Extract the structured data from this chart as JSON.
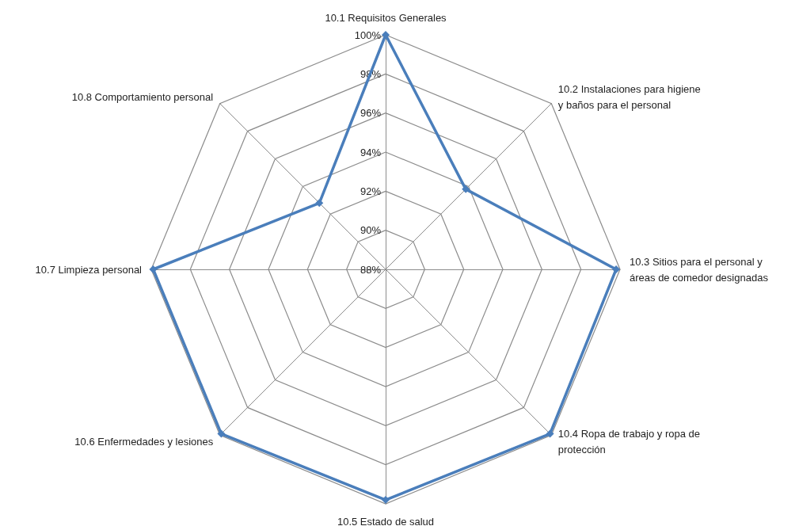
{
  "chart_data": {
    "type": "radar",
    "categories": [
      "10.1 Requisitos Generales",
      "10.2 Instalaciones para higiene\ny baños para el personal",
      "10.3 Sitios para el personal y\náreas de comedor designadas",
      "10.4 Ropa de trabajo y ropa de\nprotección",
      "10.5 Estado de salud",
      "10.6 Enfermedades y lesiones",
      "10.7 Limpieza personal",
      "10.8 Comportamiento personal"
    ],
    "series": [
      {
        "color": "#4a7ebb",
        "values": [
          100,
          93.8,
          99.8,
          99.9,
          99.8,
          99.9,
          99.9,
          92.8
        ]
      }
    ],
    "ylim": [
      88,
      100
    ],
    "yticks": [
      {
        "value": 88,
        "label": "88%"
      },
      {
        "value": 90,
        "label": "90%"
      },
      {
        "value": 92,
        "label": "92%"
      },
      {
        "value": 94,
        "label": "94%"
      },
      {
        "value": 96,
        "label": "96%"
      },
      {
        "value": 98,
        "label": "98%"
      },
      {
        "value": 100,
        "label": "100%"
      }
    ],
    "grid": true,
    "marker": "diamond",
    "line_style": "solid"
  }
}
